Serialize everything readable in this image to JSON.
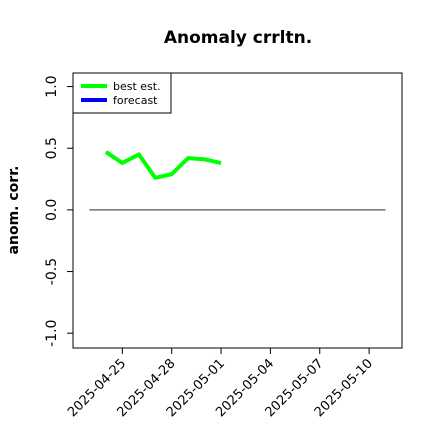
{
  "chart_data": {
    "type": "line",
    "title": "Anomaly crrltn.",
    "ylabel": "anom. corr.",
    "x": [
      "2025-04-24",
      "2025-04-25",
      "2025-04-26",
      "2025-04-27",
      "2025-04-28",
      "2025-04-29",
      "2025-04-30",
      "2025-05-01"
    ],
    "series": [
      {
        "name": "best est.",
        "color": "#00ff00",
        "values": [
          0.47,
          0.38,
          0.45,
          0.26,
          0.29,
          0.42,
          0.41,
          0.38
        ]
      },
      {
        "name": "forecast",
        "color": "#0000ff",
        "values": [
          null,
          null,
          null,
          null,
          null,
          null,
          null,
          null
        ]
      }
    ],
    "xlim": [
      "2025-04-22",
      "2025-05-12"
    ],
    "xticks": [
      "2025-04-25",
      "2025-04-28",
      "2025-05-01",
      "2025-05-04",
      "2025-05-07",
      "2025-05-10"
    ],
    "highlight_xtick": 2,
    "highlight_color": "#228b22",
    "ylim": [
      -1.12,
      1.11
    ],
    "yticks": [
      {
        "value": -1,
        "label": "-1.0"
      },
      -0.5,
      {
        "value": 0,
        "label": "0.0"
      },
      0.5,
      {
        "value": 1,
        "label": "1.0"
      }
    ],
    "reference_line": {
      "y": 0,
      "x": [
        "2025-04-23",
        "2025-05-11"
      ],
      "color": "#555555"
    },
    "legend": "upper left",
    "grid": false
  }
}
